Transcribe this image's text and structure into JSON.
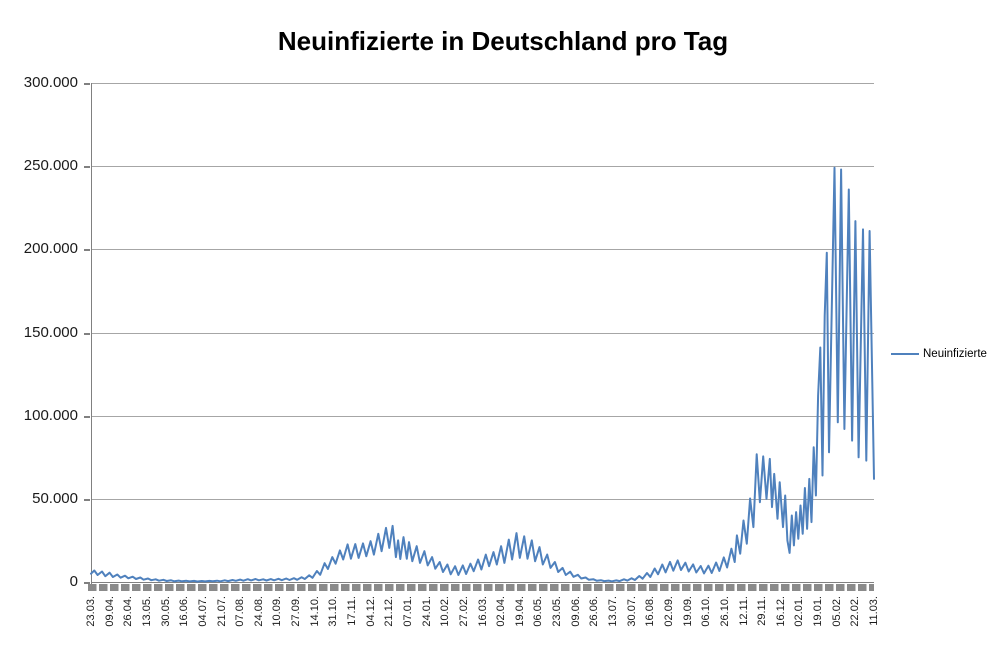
{
  "chart_data": {
    "type": "line",
    "title": "Neuinfizierte in Deutschland pro Tag",
    "grid": "horizontal",
    "legend_position": "right",
    "ylim": [
      0,
      300000
    ],
    "x_range": [
      0,
      714
    ],
    "y_tick_labels": [
      "0",
      "50.000",
      "100.000",
      "150.000",
      "200.000",
      "250.000",
      "300.000"
    ],
    "x_tick_labels": [
      "23.03.",
      "09.04.",
      "26.04.",
      "13.05.",
      "30.05.",
      "16.06.",
      "04.07.",
      "21.07.",
      "07.08.",
      "24.08.",
      "10.09.",
      "27.09.",
      "14.10.",
      "31.10.",
      "17.11.",
      "04.12.",
      "21.12.",
      "07.01.",
      "24.01.",
      "10.02.",
      "27.02.",
      "16.03.",
      "02.04.",
      "19.04.",
      "06.05.",
      "23.05.",
      "09.06.",
      "26.06.",
      "13.07.",
      "30.07.",
      "16.08.",
      "02.09.",
      "19.09.",
      "06.10.",
      "26.10.",
      "12.11.",
      "29.11.",
      "16.12.",
      "02.01.",
      "19.01.",
      "05.02.",
      "22.02.",
      "11.03."
    ],
    "colors": {
      "series": "#4f81bd",
      "gridline": "#a6a6a6",
      "axis": "#808080",
      "tickband": "#8a8a8a",
      "title": "#000000"
    },
    "series": [
      {
        "name": "Neuinfizierte",
        "color": "#4f81bd",
        "points": [
          [
            0,
            5000
          ],
          [
            3,
            6900
          ],
          [
            6,
            4200
          ],
          [
            10,
            6300
          ],
          [
            13,
            3500
          ],
          [
            17,
            5600
          ],
          [
            20,
            3000
          ],
          [
            24,
            4500
          ],
          [
            27,
            2600
          ],
          [
            31,
            3800
          ],
          [
            34,
            2200
          ],
          [
            38,
            3200
          ],
          [
            41,
            1800
          ],
          [
            45,
            2700
          ],
          [
            48,
            1400
          ],
          [
            52,
            2100
          ],
          [
            55,
            1100
          ],
          [
            59,
            1600
          ],
          [
            62,
            800
          ],
          [
            66,
            1300
          ],
          [
            69,
            600
          ],
          [
            73,
            1000
          ],
          [
            76,
            450
          ],
          [
            80,
            850
          ],
          [
            83,
            400
          ],
          [
            87,
            700
          ],
          [
            90,
            350
          ],
          [
            94,
            650
          ],
          [
            97,
            300
          ],
          [
            101,
            600
          ],
          [
            104,
            350
          ],
          [
            108,
            650
          ],
          [
            111,
            400
          ],
          [
            115,
            800
          ],
          [
            118,
            450
          ],
          [
            122,
            1000
          ],
          [
            125,
            550
          ],
          [
            129,
            1200
          ],
          [
            132,
            700
          ],
          [
            136,
            1450
          ],
          [
            139,
            800
          ],
          [
            143,
            1700
          ],
          [
            146,
            950
          ],
          [
            150,
            1800
          ],
          [
            153,
            1000
          ],
          [
            157,
            1650
          ],
          [
            160,
            900
          ],
          [
            164,
            1750
          ],
          [
            167,
            1000
          ],
          [
            171,
            1900
          ],
          [
            174,
            1100
          ],
          [
            178,
            2100
          ],
          [
            181,
            1200
          ],
          [
            185,
            2300
          ],
          [
            188,
            1350
          ],
          [
            192,
            2800
          ],
          [
            195,
            1800
          ],
          [
            199,
            4000
          ],
          [
            202,
            2500
          ],
          [
            206,
            6600
          ],
          [
            209,
            4300
          ],
          [
            213,
            11300
          ],
          [
            216,
            7800
          ],
          [
            220,
            15000
          ],
          [
            223,
            11000
          ],
          [
            227,
            19000
          ],
          [
            230,
            13500
          ],
          [
            234,
            22600
          ],
          [
            237,
            14000
          ],
          [
            241,
            22800
          ],
          [
            244,
            14500
          ],
          [
            248,
            23200
          ],
          [
            251,
            15500
          ],
          [
            255,
            24500
          ],
          [
            258,
            16500
          ],
          [
            262,
            29000
          ],
          [
            265,
            18500
          ],
          [
            269,
            32500
          ],
          [
            272,
            20500
          ],
          [
            275,
            33700
          ],
          [
            278,
            15000
          ],
          [
            280,
            25000
          ],
          [
            282,
            13800
          ],
          [
            285,
            27000
          ],
          [
            288,
            14000
          ],
          [
            290,
            24000
          ],
          [
            293,
            12500
          ],
          [
            297,
            21500
          ],
          [
            300,
            11500
          ],
          [
            304,
            18500
          ],
          [
            307,
            10000
          ],
          [
            311,
            15000
          ],
          [
            314,
            8000
          ],
          [
            318,
            12000
          ],
          [
            321,
            6000
          ],
          [
            325,
            10500
          ],
          [
            328,
            4600
          ],
          [
            332,
            9500
          ],
          [
            335,
            4200
          ],
          [
            339,
            10000
          ],
          [
            342,
            4800
          ],
          [
            346,
            11000
          ],
          [
            349,
            6500
          ],
          [
            353,
            13500
          ],
          [
            356,
            7500
          ],
          [
            360,
            16500
          ],
          [
            363,
            9500
          ],
          [
            367,
            18000
          ],
          [
            370,
            10500
          ],
          [
            374,
            21500
          ],
          [
            377,
            11500
          ],
          [
            381,
            25500
          ],
          [
            384,
            13500
          ],
          [
            388,
            29400
          ],
          [
            391,
            14500
          ],
          [
            395,
            27500
          ],
          [
            398,
            14000
          ],
          [
            402,
            25000
          ],
          [
            405,
            12500
          ],
          [
            409,
            21000
          ],
          [
            412,
            10500
          ],
          [
            416,
            16500
          ],
          [
            419,
            8500
          ],
          [
            423,
            12000
          ],
          [
            426,
            6000
          ],
          [
            430,
            8500
          ],
          [
            433,
            4200
          ],
          [
            437,
            6200
          ],
          [
            440,
            3100
          ],
          [
            444,
            4300
          ],
          [
            447,
            2100
          ],
          [
            451,
            2700
          ],
          [
            454,
            1300
          ],
          [
            458,
            1700
          ],
          [
            461,
            800
          ],
          [
            465,
            1100
          ],
          [
            468,
            550
          ],
          [
            472,
            850
          ],
          [
            475,
            440
          ],
          [
            479,
            950
          ],
          [
            482,
            550
          ],
          [
            486,
            1600
          ],
          [
            489,
            850
          ],
          [
            493,
            2200
          ],
          [
            496,
            1200
          ],
          [
            500,
            3600
          ],
          [
            503,
            2000
          ],
          [
            507,
            5400
          ],
          [
            510,
            3000
          ],
          [
            514,
            8100
          ],
          [
            517,
            4600
          ],
          [
            521,
            10500
          ],
          [
            524,
            5800
          ],
          [
            528,
            12100
          ],
          [
            531,
            6800
          ],
          [
            535,
            13000
          ],
          [
            538,
            7200
          ],
          [
            542,
            11600
          ],
          [
            545,
            6300
          ],
          [
            549,
            10600
          ],
          [
            552,
            5700
          ],
          [
            556,
            9600
          ],
          [
            559,
            5200
          ],
          [
            563,
            9800
          ],
          [
            566,
            5400
          ],
          [
            570,
            11700
          ],
          [
            573,
            6600
          ],
          [
            577,
            14800
          ],
          [
            580,
            8700
          ],
          [
            584,
            20000
          ],
          [
            587,
            12000
          ],
          [
            589,
            28000
          ],
          [
            592,
            17000
          ],
          [
            595,
            37000
          ],
          [
            598,
            23000
          ],
          [
            601,
            50200
          ],
          [
            604,
            33000
          ],
          [
            607,
            76800
          ],
          [
            610,
            48000
          ],
          [
            613,
            75500
          ],
          [
            616,
            50000
          ],
          [
            619,
            74000
          ],
          [
            621,
            45000
          ],
          [
            623,
            65000
          ],
          [
            626,
            38000
          ],
          [
            628,
            60000
          ],
          [
            631,
            33000
          ],
          [
            633,
            52000
          ],
          [
            635,
            25000
          ],
          [
            637,
            17500
          ],
          [
            639,
            40000
          ],
          [
            641,
            22000
          ],
          [
            643,
            42000
          ],
          [
            645,
            26000
          ],
          [
            647,
            46000
          ],
          [
            649,
            29000
          ],
          [
            651,
            56500
          ],
          [
            653,
            32000
          ],
          [
            655,
            62000
          ],
          [
            657,
            36000
          ],
          [
            659,
            81000
          ],
          [
            661,
            52000
          ],
          [
            663,
            112000
          ],
          [
            665,
            141000
          ],
          [
            667,
            64000
          ],
          [
            669,
            160000
          ],
          [
            671,
            198000
          ],
          [
            673,
            78000
          ],
          [
            678,
            249000
          ],
          [
            681,
            96000
          ],
          [
            684,
            248000
          ],
          [
            687,
            92000
          ],
          [
            691,
            236000
          ],
          [
            694,
            85000
          ],
          [
            697,
            217000
          ],
          [
            700,
            75000
          ],
          [
            704,
            212000
          ],
          [
            707,
            73000
          ],
          [
            710,
            211000
          ],
          [
            714,
            62000
          ]
        ]
      }
    ]
  },
  "legend": {
    "label": "Neuinfizierte"
  }
}
